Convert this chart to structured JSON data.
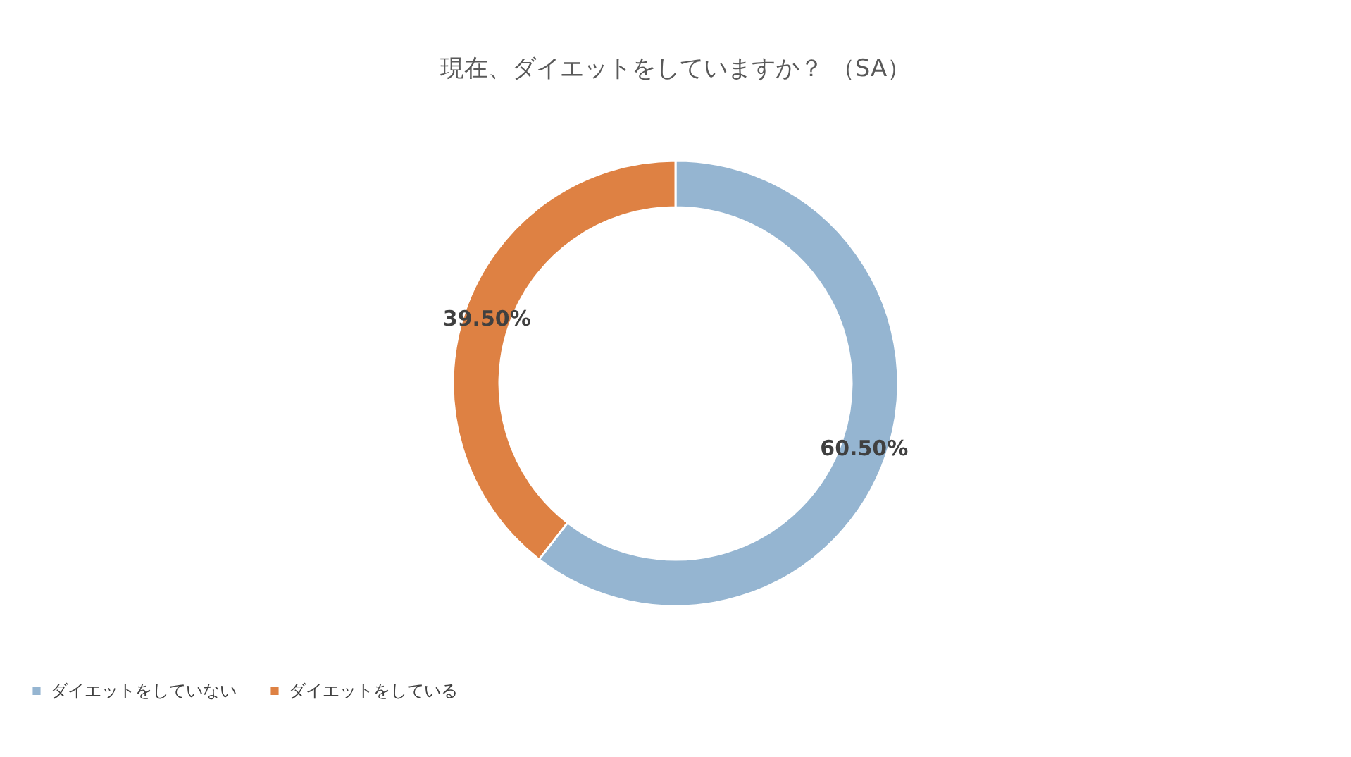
{
  "chart_data": {
    "type": "donut",
    "title": "現在、ダイエットをしていますか？ （SA）",
    "categories": [
      "ダイエットをしていない",
      "ダイエットをしている"
    ],
    "values": [
      60.5,
      39.5
    ],
    "colors": [
      "#95b5d1",
      "#de8143"
    ],
    "value_labels": [
      "60.50%",
      "39.50%"
    ],
    "legend": "bottom"
  }
}
